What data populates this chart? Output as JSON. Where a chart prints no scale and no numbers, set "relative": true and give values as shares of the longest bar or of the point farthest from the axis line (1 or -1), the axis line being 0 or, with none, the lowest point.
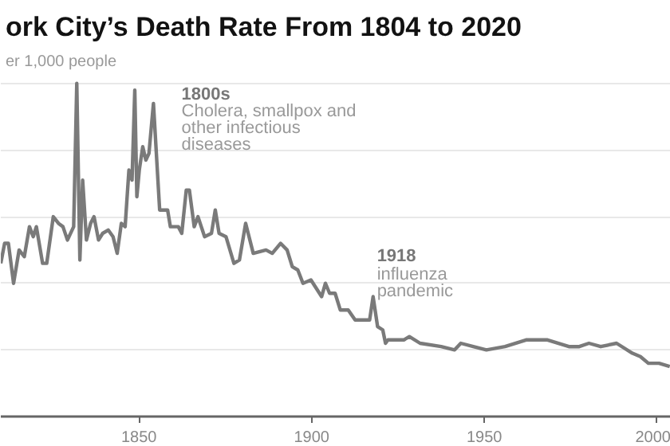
{
  "chart_data": {
    "type": "line",
    "title": "ork City’s Death Rate From 1804 to 2020",
    "ylabel": "er 1,000 people",
    "relative": true,
    "grid": "y",
    "marker": "none",
    "line_style": "solid",
    "xlim": [
      1810,
      2004
    ],
    "xticks": [
      1850,
      1900,
      1950,
      2000
    ],
    "x": [
      1810,
      1811.1,
      1812.2,
      1813.7,
      1815.3,
      1816.8,
      1818.3,
      1819.4,
      1820.3,
      1822.1,
      1823.3,
      1825.2,
      1826.7,
      1828.0,
      1829.3,
      1831.1,
      1832.0,
      1832.9,
      1833.7,
      1834.8,
      1836.0,
      1837.0,
      1838.3,
      1839.5,
      1841.1,
      1842.5,
      1843.7,
      1844.9,
      1846.0,
      1847.1,
      1848.0,
      1848.8,
      1849.4,
      1850.1,
      1851.1,
      1852.0,
      1852.9,
      1854.2,
      1856.0,
      1858.3,
      1859.1,
      1861.4,
      1862.4,
      1863.7,
      1864.6,
      1866.0,
      1867.1,
      1869.0,
      1871.0,
      1872.1,
      1873.2,
      1875.2,
      1877.5,
      1879.1,
      1880.9,
      1883.1,
      1886.8,
      1888.6,
      1891.0,
      1892.9,
      1894.4,
      1896.0,
      1897.5,
      1899.8,
      1902.9,
      1904.0,
      1905.2,
      1906.8,
      1908.3,
      1910.6,
      1912.6,
      1916.8,
      1917.8,
      1919.1,
      1920.6,
      1921.4,
      1922.1,
      1926.7,
      1928.3,
      1931.4,
      1937.5,
      1941.4,
      1943.2,
      1946.8,
      1950.6,
      1956.0,
      1962.1,
      1968.3,
      1974.5,
      1977.5,
      1980.3,
      1983.7,
      1988.3,
      1992.9,
      1995.2,
      1997.5,
      2000.6,
      2003.7
    ],
    "series": [
      {
        "color": "#7a7a7a",
        "values": [
          0.46,
          0.52,
          0.52,
          0.4,
          0.5,
          0.48,
          0.57,
          0.54,
          0.57,
          0.46,
          0.46,
          0.6,
          0.58,
          0.57,
          0.53,
          0.57,
          1.0,
          0.47,
          0.71,
          0.53,
          0.58,
          0.6,
          0.53,
          0.55,
          0.56,
          0.54,
          0.49,
          0.58,
          0.57,
          0.74,
          0.71,
          0.98,
          0.66,
          0.74,
          0.81,
          0.77,
          0.79,
          0.94,
          0.62,
          0.62,
          0.57,
          0.57,
          0.55,
          0.68,
          0.68,
          0.57,
          0.6,
          0.54,
          0.55,
          0.62,
          0.55,
          0.54,
          0.46,
          0.47,
          0.58,
          0.49,
          0.5,
          0.49,
          0.52,
          0.5,
          0.45,
          0.44,
          0.4,
          0.41,
          0.36,
          0.4,
          0.37,
          0.37,
          0.32,
          0.32,
          0.29,
          0.29,
          0.36,
          0.27,
          0.26,
          0.22,
          0.23,
          0.23,
          0.24,
          0.22,
          0.21,
          0.2,
          0.22,
          0.21,
          0.2,
          0.21,
          0.23,
          0.23,
          0.21,
          0.21,
          0.22,
          0.21,
          0.22,
          0.19,
          0.18,
          0.16,
          0.16,
          0.15
        ]
      }
    ],
    "annotations": [
      "1800s\nCholera, smallpox and\nother infectious\ndiseases",
      {
        "text": "1918\ninfluenza\npandemic",
        "x": 1918,
        "y": 0.36
      }
    ]
  }
}
